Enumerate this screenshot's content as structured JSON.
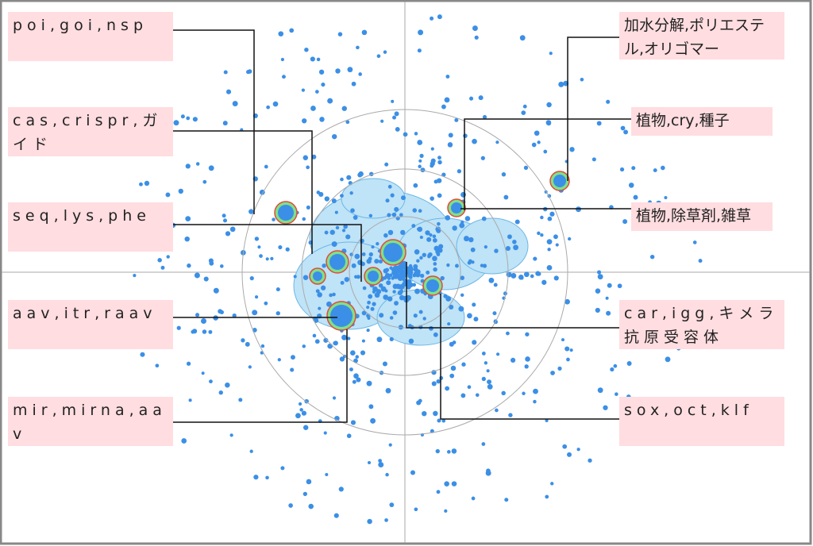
{
  "labels": [
    "poi,goi,nsp",
    "cas,crispr,ガイド",
    "seq,lys,phe",
    "aav,itr,raav",
    "mir,mirna,aav",
    "加水分解,ポリエステル,オリゴマー",
    "植物,cry,種子",
    "植物,除草剤,雑草",
    "car,igg,キメラ抗原受容体",
    "sox,oct,klf"
  ]
}
